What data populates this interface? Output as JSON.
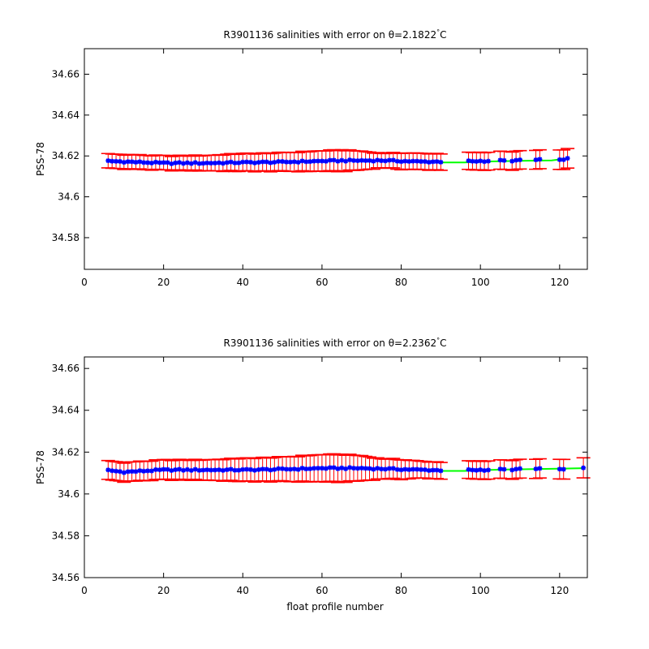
{
  "figure": {
    "background": "#ffffff",
    "series_colors": {
      "error_bars": "#ff0000",
      "points": "#0000ff",
      "mapped_line": "#00ff00"
    }
  },
  "chart_data": [
    {
      "type": "errorbar",
      "title_prefix": "R3901136 salinities with error on ",
      "theta_symbol": "θ",
      "theta_value": "=2.1822",
      "degree_mark": "°",
      "title_suffix": "C",
      "xlabel": "",
      "ylabel": "PSS-78",
      "xlim": [
        0,
        127
      ],
      "ylim": [
        34.5645,
        34.6725
      ],
      "xticks": [
        "0",
        "20",
        "40",
        "60",
        "80",
        "100",
        "120"
      ],
      "xtick_values": [
        0,
        20,
        40,
        60,
        80,
        100,
        120
      ],
      "yticks": [
        "34.58",
        "34.6",
        "34.62",
        "34.64",
        "34.66"
      ],
      "ytick_values": [
        34.58,
        34.6,
        34.62,
        34.64,
        34.66
      ],
      "grid": false,
      "profile_range": [
        6,
        122
      ],
      "missing_profiles": [
        91,
        92,
        93,
        94,
        95,
        96,
        103,
        104,
        107,
        111,
        112,
        113,
        116,
        117,
        118,
        119
      ],
      "salinity_profile": [
        [
          6,
          34.6175
        ],
        [
          20,
          34.6165
        ],
        [
          30,
          34.6165
        ],
        [
          40,
          34.6168
        ],
        [
          50,
          34.617
        ],
        [
          60,
          34.6175
        ],
        [
          65,
          34.6177
        ],
        [
          75,
          34.6178
        ],
        [
          80,
          34.6175
        ],
        [
          85,
          34.6172
        ],
        [
          90,
          34.6172
        ],
        [
          100,
          34.6175
        ],
        [
          110,
          34.6178
        ],
        [
          120,
          34.6183
        ],
        [
          122,
          34.6185
        ]
      ],
      "error_profile": [
        [
          6,
          0.0035
        ],
        [
          20,
          0.0035
        ],
        [
          30,
          0.0037
        ],
        [
          40,
          0.0043
        ],
        [
          50,
          0.0045
        ],
        [
          60,
          0.005
        ],
        [
          65,
          0.0052
        ],
        [
          70,
          0.0046
        ],
        [
          75,
          0.0035
        ],
        [
          80,
          0.004
        ],
        [
          85,
          0.004
        ],
        [
          90,
          0.004
        ],
        [
          100,
          0.0043
        ],
        [
          110,
          0.0045
        ],
        [
          122,
          0.0048
        ]
      ],
      "mapped_salinity": [
        [
          90,
          34.6168
        ],
        [
          96,
          34.6168
        ],
        [
          100,
          34.6172
        ],
        [
          110,
          34.6176
        ],
        [
          118,
          34.6178
        ],
        [
          122,
          34.6188
        ]
      ]
    },
    {
      "type": "errorbar",
      "title_prefix": "R3901136 salinities with error on ",
      "theta_symbol": "θ",
      "theta_value": "=2.2362",
      "degree_mark": "°",
      "title_suffix": "C",
      "xlabel": "float profile number",
      "ylabel": "PSS-78",
      "xlim": [
        0,
        127
      ],
      "ylim": [
        34.56,
        34.6655
      ],
      "xticks": [
        "0",
        "20",
        "40",
        "60",
        "80",
        "100",
        "120"
      ],
      "xtick_values": [
        0,
        20,
        40,
        60,
        80,
        100,
        120
      ],
      "yticks": [
        "34.56",
        "34.58",
        "34.6",
        "34.62",
        "34.64",
        "34.66"
      ],
      "ytick_values": [
        34.56,
        34.58,
        34.6,
        34.62,
        34.64,
        34.66
      ],
      "grid": false,
      "profile_range": [
        6,
        126
      ],
      "missing_profiles": [
        91,
        92,
        93,
        94,
        95,
        96,
        103,
        104,
        107,
        111,
        112,
        113,
        116,
        117,
        118,
        119,
        122,
        123,
        124,
        125
      ],
      "salinity_profile": [
        [
          6,
          34.6113
        ],
        [
          10,
          34.6105
        ],
        [
          20,
          34.6115
        ],
        [
          30,
          34.6115
        ],
        [
          40,
          34.6115
        ],
        [
          50,
          34.6118
        ],
        [
          60,
          34.6123
        ],
        [
          70,
          34.6123
        ],
        [
          80,
          34.6118
        ],
        [
          90,
          34.6113
        ],
        [
          100,
          34.6115
        ],
        [
          110,
          34.6118
        ],
        [
          120,
          34.612
        ],
        [
          126,
          34.6123
        ]
      ],
      "error_profile": [
        [
          6,
          0.0045
        ],
        [
          20,
          0.0047
        ],
        [
          30,
          0.0048
        ],
        [
          40,
          0.0055
        ],
        [
          50,
          0.0058
        ],
        [
          60,
          0.0065
        ],
        [
          65,
          0.0066
        ],
        [
          70,
          0.006
        ],
        [
          75,
          0.0048
        ],
        [
          80,
          0.0047
        ],
        [
          85,
          0.004
        ],
        [
          90,
          0.004
        ],
        [
          100,
          0.0043
        ],
        [
          110,
          0.0045
        ],
        [
          126,
          0.0048
        ]
      ],
      "mapped_salinity": [
        [
          90,
          34.611
        ],
        [
          96,
          34.611
        ],
        [
          100,
          34.6114
        ],
        [
          110,
          34.6118
        ],
        [
          118,
          34.612
        ],
        [
          126,
          34.6123
        ]
      ]
    }
  ]
}
